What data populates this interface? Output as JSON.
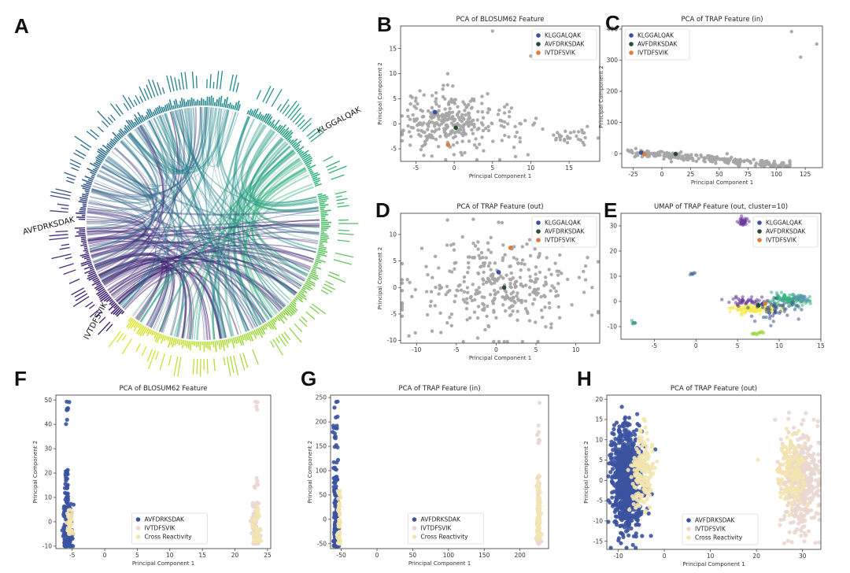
{
  "figure_labels": [
    "A",
    "B",
    "C",
    "D",
    "E",
    "F",
    "G",
    "H"
  ],
  "chart_data": [
    {
      "panel": "A",
      "type": "chord",
      "groups": [
        {
          "name": "KLGGALQAK",
          "color": "#3e1f6e"
        },
        {
          "name": "AVFDRKSDAK",
          "color": "#2f6f8e"
        },
        {
          "name": "IVTDFSVIK",
          "color": "#35b779"
        }
      ],
      "end_color": "#dfe82a"
    },
    {
      "panel": "B",
      "type": "scatter",
      "title": "PCA of BLOSUM62 Feature",
      "xlabel": "Principal Component 1",
      "ylabel": "Principal Component 2",
      "xlim": [
        -7,
        19
      ],
      "ylim": [
        -7.5,
        19.5
      ],
      "xticks": [
        -5,
        0,
        5,
        10,
        15
      ],
      "yticks": [
        -5,
        0,
        5,
        10,
        15
      ],
      "background": {
        "color": "#a6a6a6",
        "clusters": [
          {
            "cx": -1.5,
            "cy": 0.5,
            "sx": 2.5,
            "sy": 3,
            "n": 260
          },
          {
            "cx": 6,
            "cy": 0,
            "sx": 2.5,
            "sy": 2.5,
            "n": 60
          },
          {
            "cx": 15,
            "cy": -3,
            "sx": 1.8,
            "sy": 1.2,
            "n": 30
          }
        ],
        "points": [
          [
            5,
            18.5
          ],
          [
            10,
            13.5
          ],
          [
            11,
            14.6
          ]
        ]
      },
      "highlights": [
        {
          "name": "KLGGALQAK",
          "color": "#3b50a0",
          "x": -2.5,
          "y": 2.3
        },
        {
          "name": "AVFDRKSDAK",
          "color": "#2d4a2f",
          "x": 0.2,
          "y": -0.8
        },
        {
          "name": "IVTDFSVIK",
          "color": "#e07b39",
          "x": -0.8,
          "y": -4.2
        }
      ],
      "legend": "top-right"
    },
    {
      "panel": "C",
      "type": "scatter",
      "title": "PCA of TRAP Feature (in)",
      "xlabel": "Principal Component 1",
      "ylabel": "Principal Component 2",
      "xlim": [
        -35,
        140
      ],
      "ylim": [
        -45,
        410
      ],
      "xticks": [
        -25,
        0,
        25,
        50,
        75,
        100,
        125
      ],
      "yticks": [
        0,
        100,
        200,
        300,
        400
      ],
      "background": {
        "color": "#a6a6a6",
        "band": {
          "x0": -30,
          "x1": 112,
          "y0": 5,
          "y1": -38,
          "n": 260,
          "spread": 6
        },
        "points": [
          [
            113,
            392
          ],
          [
            121,
            310
          ],
          [
            135,
            352
          ]
        ]
      },
      "highlights": [
        {
          "name": "KLGGALQAK",
          "color": "#3b50a0",
          "x": -18,
          "y": 3
        },
        {
          "name": "AVFDRKSDAK",
          "color": "#2d4a2f",
          "x": 12,
          "y": -1
        },
        {
          "name": "IVTDFSVIK",
          "color": "#e07b39",
          "x": -15,
          "y": -2
        }
      ],
      "legend": "top-left"
    },
    {
      "panel": "D",
      "type": "scatter",
      "title": "PCA of TRAP Feature (out)",
      "xlabel": "Principal Component 1",
      "ylabel": "Principal Component 2",
      "xlim": [
        -12,
        13
      ],
      "ylim": [
        -10.5,
        14
      ],
      "xticks": [
        -10,
        -5,
        0,
        5,
        10
      ],
      "yticks": [
        -10,
        -5,
        0,
        5,
        10
      ],
      "background": {
        "color": "#a6a6a6",
        "clusters": [
          {
            "cx": 0,
            "cy": 0.5,
            "sx": 5,
            "sy": 4.5,
            "n": 340
          }
        ],
        "points": []
      },
      "highlights": [
        {
          "name": "KLGGALQAK",
          "color": "#3b50a0",
          "x": 0.3,
          "y": 2.9
        },
        {
          "name": "AVFDRKSDAK",
          "color": "#2d4a2f",
          "x": 1,
          "y": 0
        },
        {
          "name": "IVTDFSVIK",
          "color": "#e07b39",
          "x": 1.8,
          "y": 7.5
        }
      ],
      "legend": "top-right"
    },
    {
      "panel": "E",
      "type": "scatter",
      "title": "UMAP of TRAP Feature (out, cluster=10)",
      "xlabel": "",
      "ylabel": "",
      "xlim": [
        -9,
        15
      ],
      "ylim": [
        -15,
        35
      ],
      "xticks": [
        -5,
        0,
        5,
        10,
        15
      ],
      "yticks": [
        -10,
        0,
        10,
        20,
        30
      ],
      "clusters": [
        {
          "color": "#6a3d9a",
          "cx": 5.6,
          "cy": 31.5,
          "sx": 0.3,
          "sy": 0.8,
          "n": 40
        },
        {
          "color": "#4e6fa0",
          "cx": -0.5,
          "cy": 11,
          "sx": 0.3,
          "sy": 0.3,
          "n": 8
        },
        {
          "color": "#3c9f8a",
          "cx": -7.5,
          "cy": -8.5,
          "sx": 0.2,
          "sy": 0.4,
          "n": 8
        },
        {
          "color": "#9fd63a",
          "cx": 7.6,
          "cy": -12.5,
          "sx": 0.6,
          "sy": 0.3,
          "n": 14
        },
        {
          "color": "#f2e94e",
          "cx": 7,
          "cy": -3,
          "sx": 1.3,
          "sy": 0.8,
          "n": 120
        },
        {
          "color": "#2fb47c",
          "cx": 11,
          "cy": 0.5,
          "sx": 1.3,
          "sy": 1.1,
          "n": 100
        },
        {
          "color": "#3b528b",
          "cx": 9.5,
          "cy": -3,
          "sx": 1.5,
          "sy": 2,
          "n": 60
        },
        {
          "color": "#6a3d9a",
          "cx": 6,
          "cy": 0,
          "sx": 1.2,
          "sy": 1,
          "n": 40
        },
        {
          "color": "#5b8fb0",
          "cx": 12.5,
          "cy": 1.5,
          "sx": 0.8,
          "sy": 0.6,
          "n": 20
        }
      ],
      "highlights": [
        {
          "name": "KLGGALQAK",
          "color": "#3b50a0",
          "x": 8,
          "y": -1
        },
        {
          "name": "AVFDRKSDAK",
          "color": "#2d4a2f",
          "x": 7.5,
          "y": -1.5
        },
        {
          "name": "IVTDFSVIK",
          "color": "#e07b39",
          "x": 8.3,
          "y": -0.8
        }
      ],
      "legend": "top-right"
    },
    {
      "panel": "F",
      "type": "scatter",
      "title": "PCA of BLOSUM62 Feature",
      "xlabel": "Principal Component 1",
      "ylabel": "Principal Component 2",
      "xlim": [
        -7.5,
        25.5
      ],
      "ylim": [
        -11,
        52
      ],
      "xticks": [
        -5,
        0,
        5,
        10,
        15,
        20,
        25
      ],
      "yticks": [
        -10,
        0,
        10,
        20,
        30,
        40,
        50
      ],
      "groups": [
        {
          "name": "AVFDRKSDAK",
          "color": "#3b52a0",
          "strips": [
            {
              "x": -5.7,
              "y0": -10,
              "y1": 8,
              "sx": 0.35,
              "n": 140
            },
            {
              "x": -5.8,
              "y0": 8,
              "y1": 22,
              "sx": 0.2,
              "n": 30
            },
            {
              "x": -5.7,
              "y0": 40,
              "y1": 50,
              "sx": 0.15,
              "n": 8
            }
          ]
        },
        {
          "name": "IVTDFSVIK",
          "color": "#ead7d0",
          "strips": [
            {
              "x": 23.2,
              "y0": -9,
              "y1": 8,
              "sx": 0.3,
              "n": 90
            },
            {
              "x": 23.2,
              "y0": 14,
              "y1": 18,
              "sx": 0.15,
              "n": 6
            },
            {
              "x": 23.2,
              "y0": 46,
              "y1": 50,
              "sx": 0.2,
              "n": 4
            }
          ]
        },
        {
          "name": "Cross Reactivity",
          "color": "#f3e4b0",
          "strips": [
            {
              "x": -5.4,
              "y0": -5,
              "y1": 5,
              "sx": 0.25,
              "n": 40
            },
            {
              "x": 23.3,
              "y0": -8,
              "y1": 6,
              "sx": 0.25,
              "n": 60
            }
          ]
        }
      ],
      "legend": "lower-center"
    },
    {
      "panel": "G",
      "type": "scatter",
      "title": "PCA of TRAP Feature (in)",
      "xlabel": "Principal Component 1",
      "ylabel": "Principal Component 2",
      "xlim": [
        -65,
        240
      ],
      "ylim": [
        -60,
        255
      ],
      "xticks": [
        -50,
        0,
        50,
        100,
        150,
        200
      ],
      "yticks": [
        -50,
        0,
        50,
        100,
        150,
        200,
        250
      ],
      "groups": [
        {
          "name": "AVFDRKSDAK",
          "color": "#3b52a0",
          "strips": [
            {
              "x": -57,
              "y0": -55,
              "y1": 60,
              "sx": 1.8,
              "n": 160
            },
            {
              "x": -58,
              "y0": 60,
              "y1": 245,
              "sx": 1.5,
              "n": 45
            }
          ]
        },
        {
          "name": "IVTDFSVIK",
          "color": "#ead7d0",
          "strips": [
            {
              "x": 226,
              "y0": -50,
              "y1": 90,
              "sx": 1.2,
              "n": 80
            },
            {
              "x": 226,
              "y0": 150,
              "y1": 250,
              "sx": 1,
              "n": 8
            }
          ]
        },
        {
          "name": "Cross Reactivity",
          "color": "#f3e4b0",
          "strips": [
            {
              "x": -53,
              "y0": -50,
              "y1": 60,
              "sx": 1.5,
              "n": 50
            },
            {
              "x": 226,
              "y0": -40,
              "y1": 100,
              "sx": 1.2,
              "n": 70
            }
          ]
        }
      ],
      "legend": "lower-center"
    },
    {
      "panel": "H",
      "type": "scatter",
      "title": "PCA of TRAP Feature (out)",
      "xlabel": "Principal Component 1",
      "ylabel": "Principal Component 2",
      "xlim": [
        -12.5,
        34
      ],
      "ylim": [
        -17,
        21
      ],
      "xticks": [
        -10,
        0,
        10,
        20,
        30
      ],
      "yticks": [
        -15,
        -10,
        -5,
        0,
        5,
        10,
        15,
        20
      ],
      "groups": [
        {
          "name": "AVFDRKSDAK",
          "color": "#3b52a0",
          "clusters": [
            {
              "cx": -8,
              "cy": 0,
              "sx": 1.6,
              "sy": 6,
              "n": 900
            }
          ]
        },
        {
          "name": "IVTDFSVIK",
          "color": "#ead7d0",
          "clusters": [
            {
              "cx": 29.5,
              "cy": 0,
              "sx": 2,
              "sy": 6,
              "n": 420
            }
          ]
        },
        {
          "name": "Cross Reactivity",
          "color": "#f3e4b0",
          "clusters": [
            {
              "cx": -4.8,
              "cy": 2,
              "sx": 1.2,
              "sy": 4.5,
              "n": 180
            },
            {
              "cx": 27.5,
              "cy": 2,
              "sx": 1.5,
              "sy": 4,
              "n": 150
            }
          ]
        }
      ],
      "legend": "lower-center"
    }
  ]
}
